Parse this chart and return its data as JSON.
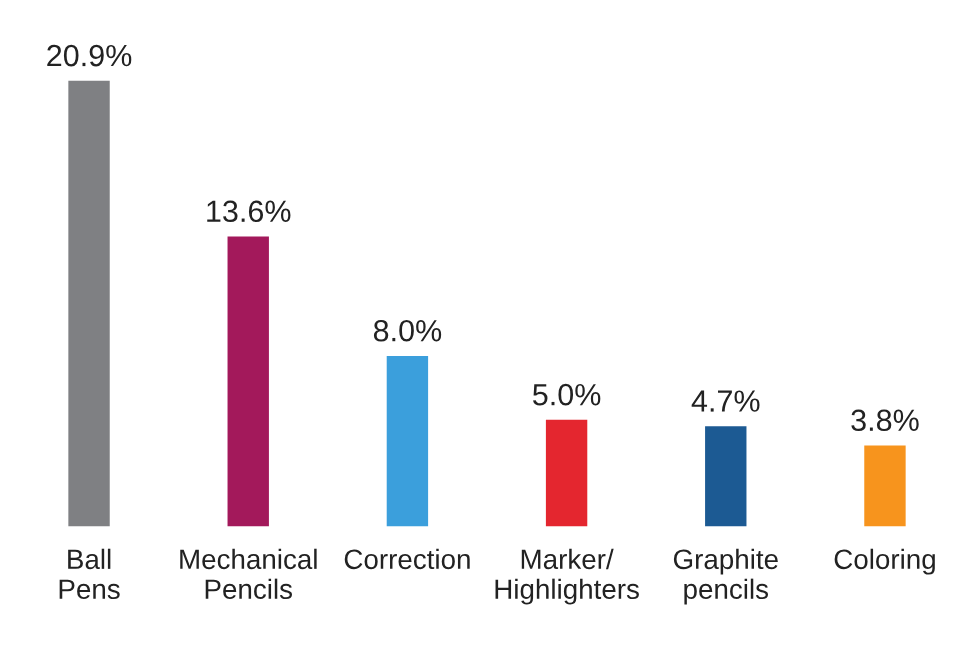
{
  "chart_data": {
    "type": "bar",
    "categories": [
      "Ball\nPens",
      "Mechanical\nPencils",
      "Correction",
      "Marker/\nHighlighters",
      "Graphite\npencils",
      "Coloring"
    ],
    "values": [
      20.9,
      13.6,
      8.0,
      5.0,
      4.7,
      3.8
    ],
    "colors": [
      "#7f8083",
      "#a3195b",
      "#3b9fdc",
      "#e4262f",
      "#1c5a93",
      "#f7941d"
    ],
    "value_labels": [
      "20.9%",
      "13.6%",
      "8.0%",
      "5.0%",
      "4.7%",
      "3.8%"
    ],
    "grid": false,
    "legend": false
  }
}
